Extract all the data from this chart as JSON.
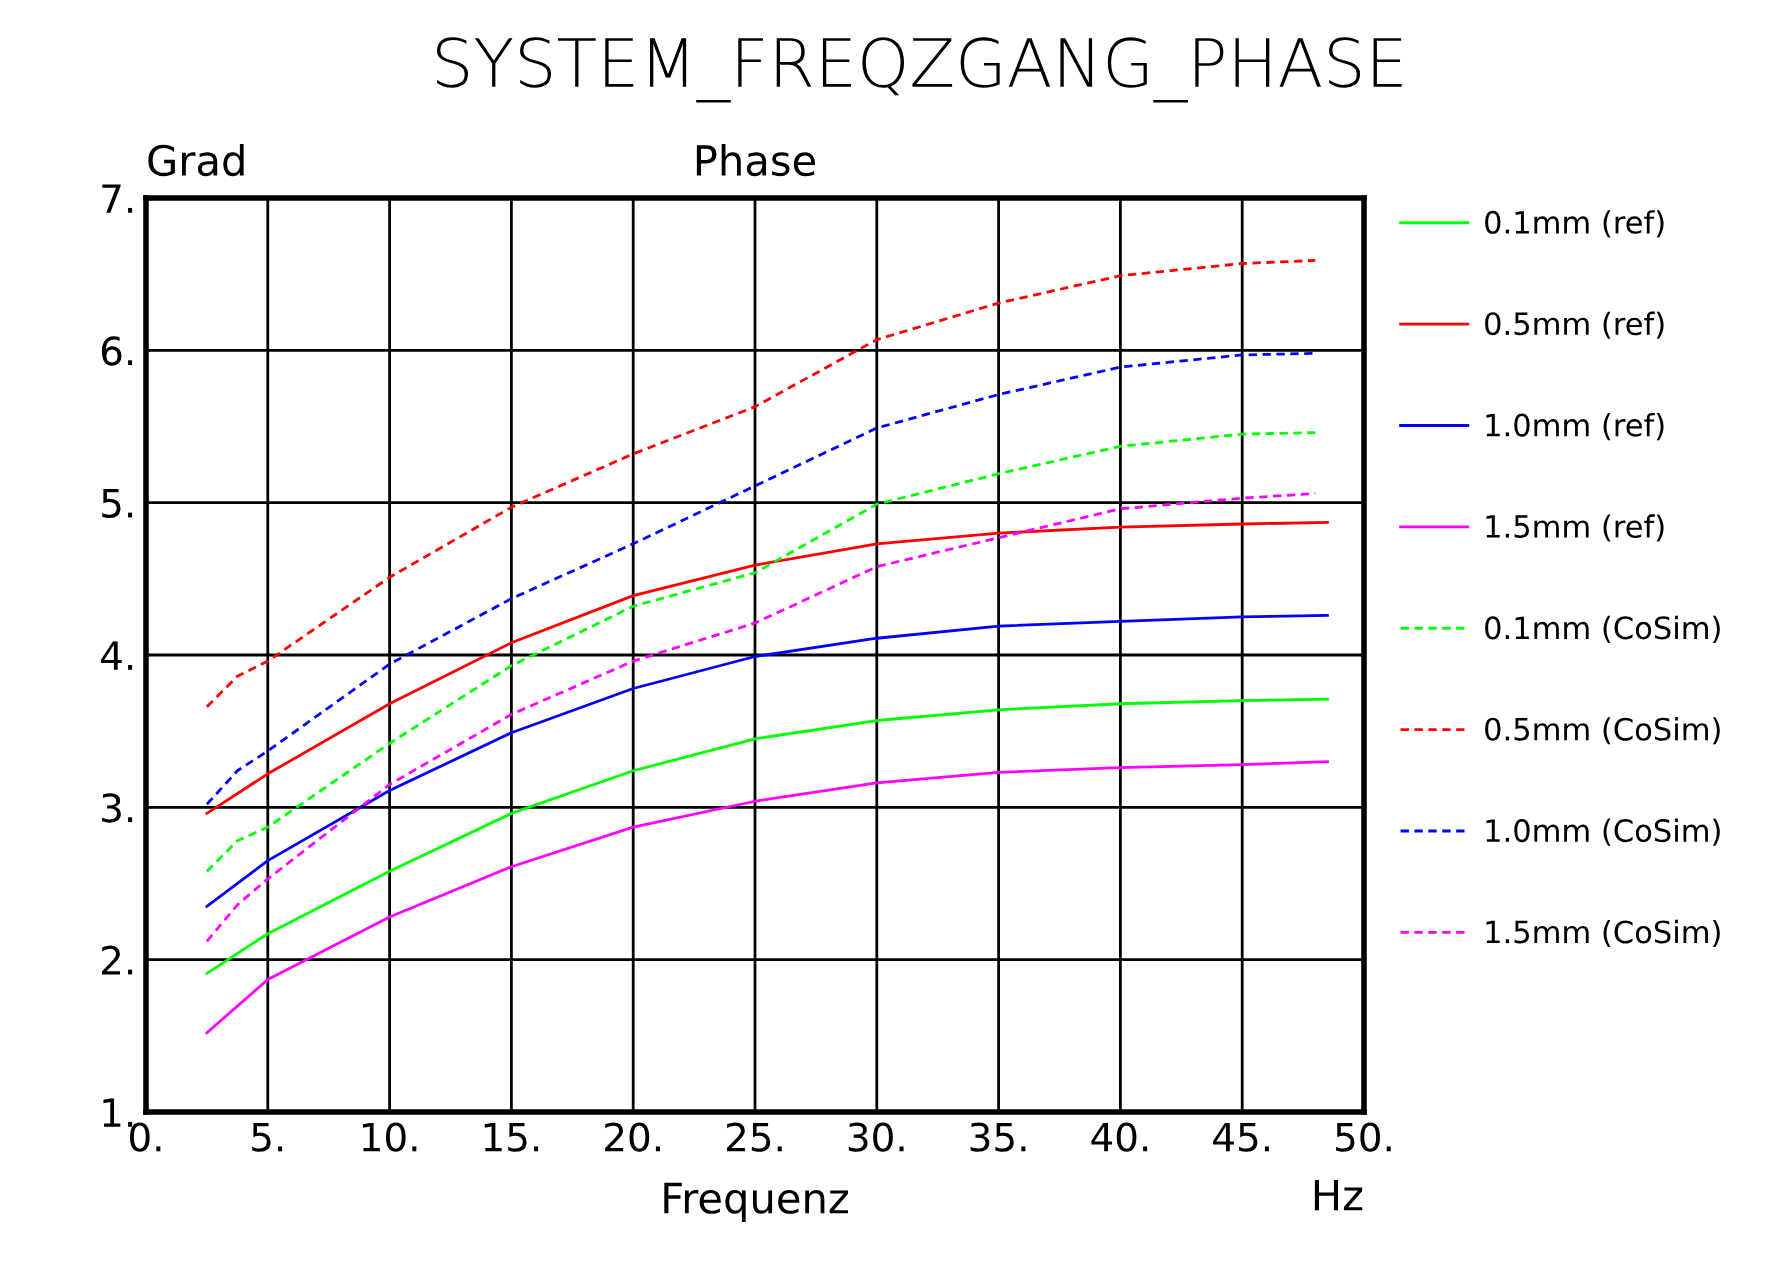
{
  "chart_data": {
    "type": "line",
    "title": "SYSTEM_FREQZGANG_PHASE",
    "subtitle": "Phase",
    "xlabel": "Frequenz",
    "ylabel": "Grad",
    "annotations": [
      "Hz"
    ],
    "xlim": [
      0,
      50
    ],
    "ylim": [
      1,
      7
    ],
    "xticks": [
      {
        "value": 0,
        "label": "0."
      },
      {
        "value": 5,
        "label": "5."
      },
      {
        "value": 10,
        "label": "10."
      },
      {
        "value": 15,
        "label": "15."
      },
      {
        "value": 20,
        "label": "20."
      },
      {
        "value": 25,
        "label": "25."
      },
      {
        "value": 30,
        "label": "30."
      },
      {
        "value": 35,
        "label": "35."
      },
      {
        "value": 40,
        "label": "40."
      },
      {
        "value": 45,
        "label": "45."
      },
      {
        "value": 50,
        "label": "50."
      }
    ],
    "yticks": [
      {
        "value": 1,
        "label": "1."
      },
      {
        "value": 2,
        "label": "2."
      },
      {
        "value": 3,
        "label": "3."
      },
      {
        "value": 4,
        "label": "4."
      },
      {
        "value": 5,
        "label": "5."
      },
      {
        "value": 6,
        "label": "6."
      },
      {
        "value": 7,
        "label": "7."
      }
    ],
    "grid": true,
    "legend": "right",
    "marker": "none",
    "series": [
      {
        "name": "0.1mm (ref)",
        "color": "#00ff00",
        "line_style": "solid",
        "x": [
          2.5,
          5,
          10,
          15,
          20,
          25,
          30,
          35,
          40,
          45,
          48.5
        ],
        "values": [
          1.91,
          2.17,
          2.58,
          2.96,
          3.24,
          3.45,
          3.57,
          3.64,
          3.68,
          3.7,
          3.71
        ]
      },
      {
        "name": "0.5mm (ref)",
        "color": "#ff0000",
        "line_style": "solid",
        "x": [
          2.5,
          5,
          10,
          15,
          20,
          25,
          30,
          35,
          40,
          45,
          48.5
        ],
        "values": [
          2.96,
          3.22,
          3.68,
          4.08,
          4.39,
          4.59,
          4.73,
          4.8,
          4.84,
          4.86,
          4.87
        ]
      },
      {
        "name": "1.0mm (ref)",
        "color": "#0000ff",
        "line_style": "solid",
        "x": [
          2.5,
          5,
          10,
          15,
          20,
          25,
          30,
          35,
          40,
          45,
          48.5
        ],
        "values": [
          2.35,
          2.65,
          3.11,
          3.49,
          3.78,
          3.99,
          4.11,
          4.19,
          4.22,
          4.25,
          4.26
        ]
      },
      {
        "name": "1.5mm (ref)",
        "color": "#ff00ff",
        "line_style": "solid",
        "x": [
          2.5,
          5,
          10,
          15,
          20,
          25,
          30,
          35,
          40,
          45,
          48.5
        ],
        "values": [
          1.52,
          1.87,
          2.28,
          2.61,
          2.87,
          3.04,
          3.16,
          3.23,
          3.26,
          3.28,
          3.3
        ]
      },
      {
        "name": "0.1mm (CoSim)",
        "color": "#00ff00",
        "line_style": "dashed",
        "x": [
          2.5,
          3.75,
          5,
          10,
          15,
          20,
          25,
          30,
          35,
          40,
          45,
          48
        ],
        "values": [
          2.58,
          2.78,
          2.87,
          3.42,
          3.93,
          4.32,
          4.54,
          4.99,
          5.19,
          5.37,
          5.45,
          5.46
        ]
      },
      {
        "name": "0.5mm (CoSim)",
        "color": "#ff0000",
        "line_style": "dashed",
        "x": [
          2.5,
          3.75,
          5,
          10,
          15,
          20,
          25,
          30,
          35,
          40,
          45,
          48
        ],
        "values": [
          3.66,
          3.86,
          3.96,
          4.51,
          4.97,
          5.32,
          5.63,
          6.07,
          6.31,
          6.49,
          6.57,
          6.59
        ]
      },
      {
        "name": "1.0mm (CoSim)",
        "color": "#0000ff",
        "line_style": "dashed",
        "x": [
          2.5,
          3.75,
          5,
          10,
          15,
          20,
          25,
          30,
          35,
          40,
          45,
          48
        ],
        "values": [
          3.02,
          3.24,
          3.37,
          3.94,
          4.37,
          4.73,
          5.11,
          5.49,
          5.71,
          5.89,
          5.97,
          5.98
        ]
      },
      {
        "name": "1.5mm (CoSim)",
        "color": "#ff00ff",
        "line_style": "dashed",
        "x": [
          2.5,
          3.75,
          5,
          10,
          15,
          20,
          25,
          30,
          35,
          40,
          45,
          48
        ],
        "values": [
          2.12,
          2.36,
          2.53,
          3.15,
          3.61,
          3.96,
          4.21,
          4.58,
          4.77,
          4.96,
          5.03,
          5.06
        ]
      }
    ]
  }
}
